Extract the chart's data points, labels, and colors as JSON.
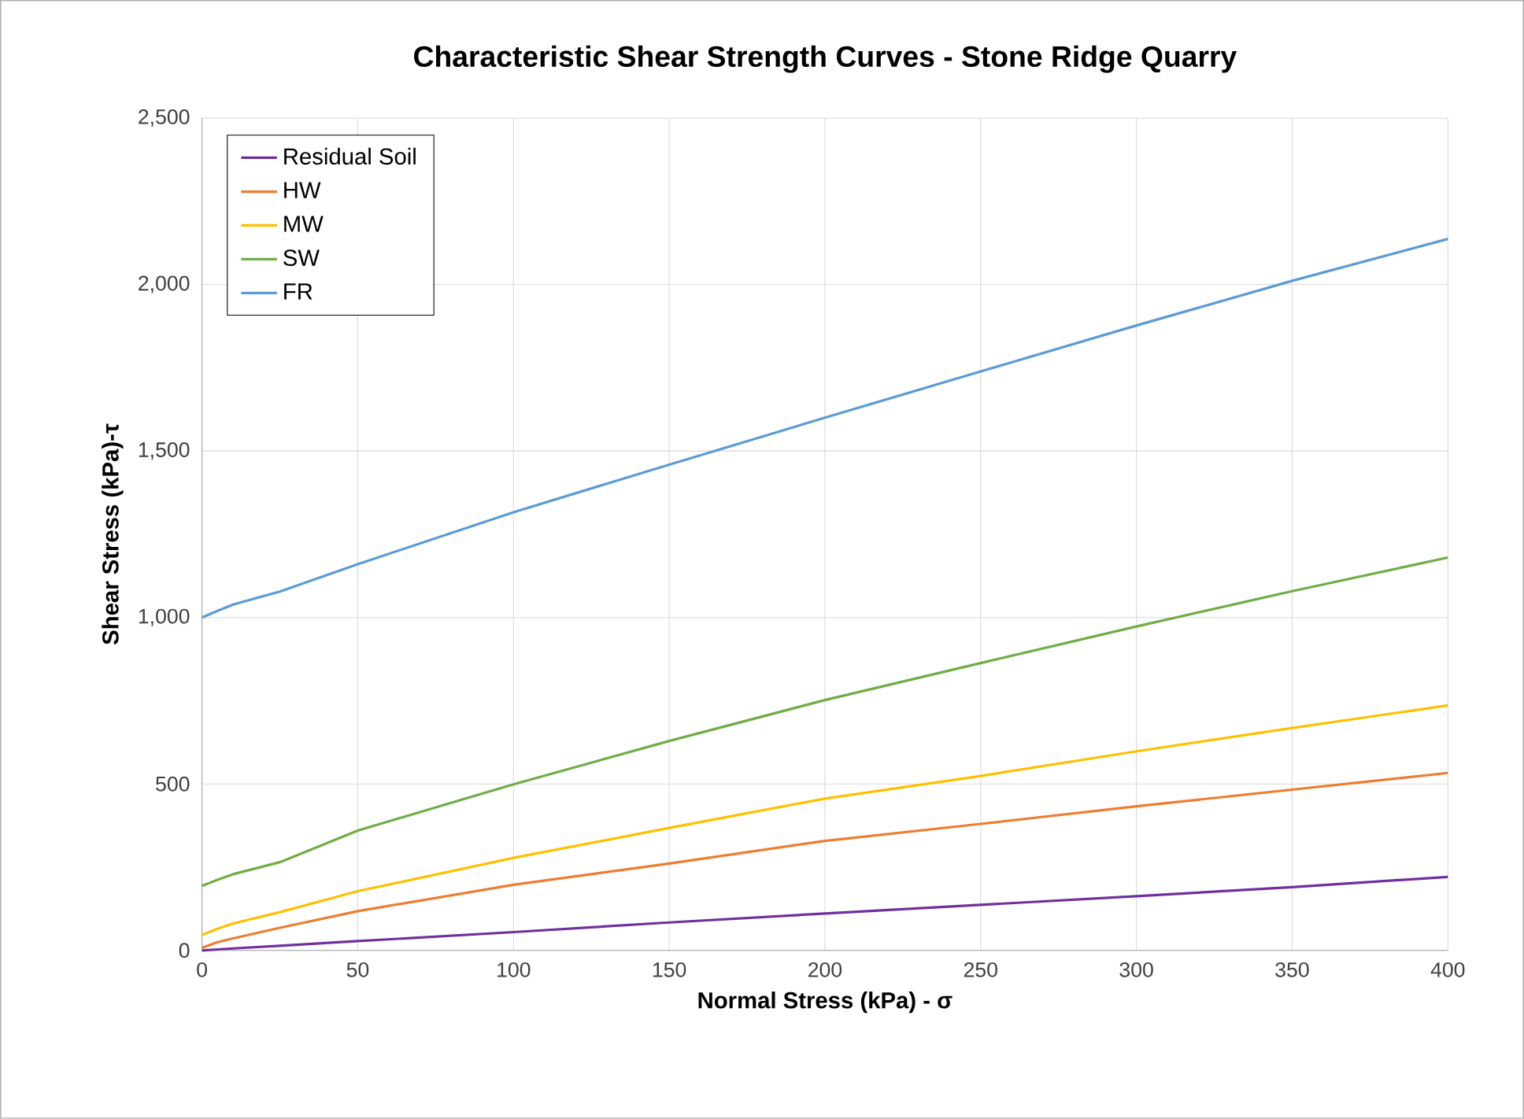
{
  "chart_data": {
    "type": "line",
    "title": "Characteristic Shear Strength Curves - Stone Ridge Quarry",
    "xlabel": "Normal Stress (kPa) - σ",
    "ylabel": "Shear Stress (kPa)-τ",
    "x": [
      0,
      5,
      10,
      25,
      50,
      100,
      150,
      200,
      250,
      300,
      350,
      400
    ],
    "series": [
      {
        "name": "Residual Soil",
        "color": "#7030a0",
        "values": [
          0,
          3,
          6,
          14,
          28,
          55,
          84,
          111,
          137,
          163,
          190,
          221
        ]
      },
      {
        "name": "HW",
        "color": "#ed7d31",
        "values": [
          8,
          25,
          36,
          68,
          118,
          197,
          261,
          329,
          380,
          433,
          483,
          533
        ]
      },
      {
        "name": "MW",
        "color": "#ffc000",
        "values": [
          47,
          65,
          81,
          115,
          178,
          278,
          368,
          456,
          524,
          598,
          668,
          736
        ]
      },
      {
        "name": "SW",
        "color": "#70ad47",
        "values": [
          194,
          212,
          229,
          265,
          360,
          499,
          629,
          752,
          863,
          973,
          1079,
          1180
        ]
      },
      {
        "name": "FR",
        "color": "#5b9bd5",
        "values": [
          1000,
          1020,
          1039,
          1078,
          1160,
          1316,
          1459,
          1600,
          1739,
          1877,
          2011,
          2137
        ]
      }
    ],
    "xlim": [
      0,
      400
    ],
    "xticks": [
      0,
      50,
      100,
      150,
      200,
      250,
      300,
      350,
      400
    ],
    "ylim": [
      0,
      2500
    ],
    "yticks": [
      {
        "value": 0,
        "label": "0"
      },
      {
        "value": 500,
        "label": "500"
      },
      {
        "value": 1000,
        "label": "1,000"
      },
      {
        "value": 1500,
        "label": "1,500"
      },
      {
        "value": 2000,
        "label": "2,000"
      },
      {
        "value": 2500,
        "label": "2,500"
      }
    ],
    "grid": true,
    "legend": "top left",
    "marker": "none",
    "line_style": "solid"
  }
}
